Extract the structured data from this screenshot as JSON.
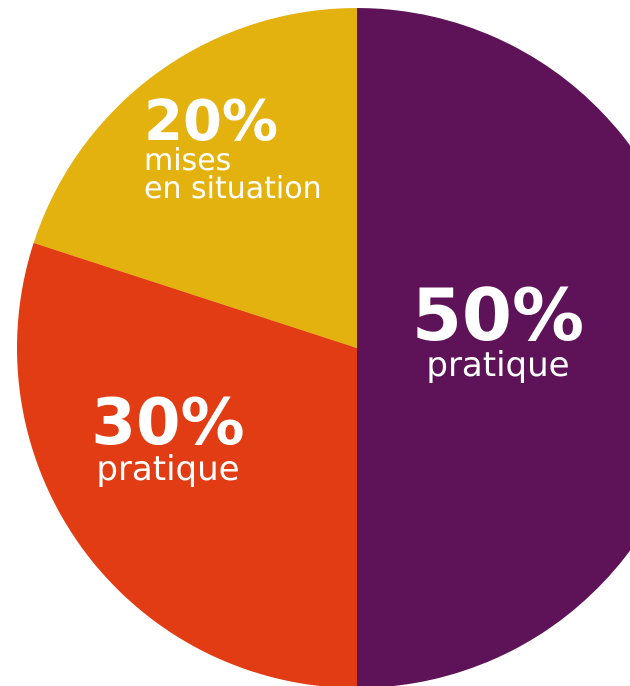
{
  "chart_data": {
    "type": "pie",
    "slices": [
      {
        "value": 50,
        "percent_label": "50%",
        "label_lines": [
          "pratique"
        ],
        "color": "#5e1358"
      },
      {
        "value": 30,
        "percent_label": "30%",
        "label_lines": [
          "pratique"
        ],
        "color": "#e23c14"
      },
      {
        "value": 20,
        "percent_label": "20%",
        "label_lines": [
          "mises",
          "en situation"
        ],
        "color": "#e3b20e"
      }
    ],
    "start_angle_deg": 0,
    "direction": "clockwise",
    "legend": "none",
    "labels_inside_slices": true
  }
}
